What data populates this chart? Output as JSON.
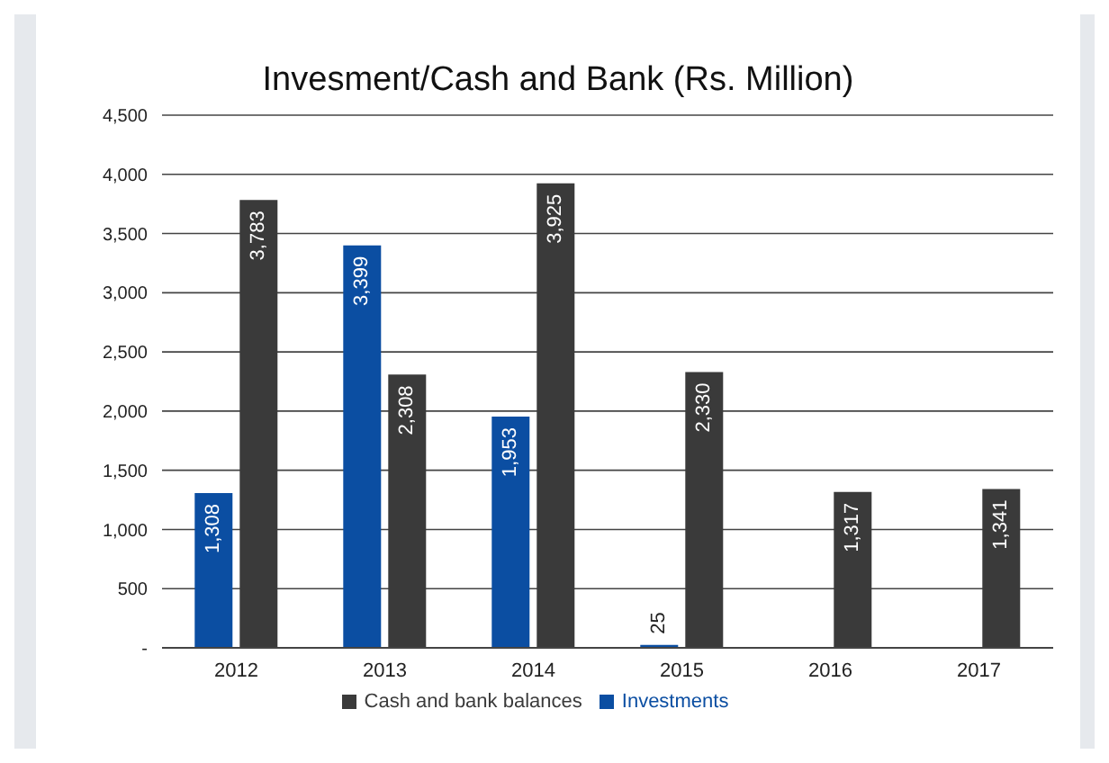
{
  "chart_data": {
    "type": "bar",
    "title": "Invesment/Cash and Bank (Rs. Million)",
    "categories": [
      "2012",
      "2013",
      "2014",
      "2015",
      "2016",
      "2017"
    ],
    "series": [
      {
        "name": "Investments",
        "color": "#0b4ea2",
        "values": [
          1308,
          3399,
          1953,
          25,
          null,
          null
        ],
        "value_labels": [
          "1,308",
          "3,399",
          "1,953",
          "25",
          null,
          null
        ]
      },
      {
        "name": "Cash and bank balances",
        "color": "#3a3a3a",
        "values": [
          3783,
          2308,
          3925,
          2330,
          1317,
          1341
        ],
        "value_labels": [
          "3,783",
          "2,308",
          "3,925",
          "2,330",
          "1,317",
          "1,341"
        ]
      }
    ],
    "ylim": [
      0,
      4500
    ],
    "yticks": [
      {
        "value": 0,
        "label": "-"
      },
      500,
      {
        "value": 1000,
        "label": "1,000"
      },
      {
        "value": 1500,
        "label": "1,500"
      },
      {
        "value": 2000,
        "label": "2,000"
      },
      {
        "value": 2500,
        "label": "2,500"
      },
      {
        "value": 3000,
        "label": "3,000"
      },
      {
        "value": 3500,
        "label": "3,500"
      },
      {
        "value": 4000,
        "label": "4,000"
      },
      {
        "value": 4500,
        "label": "4,500"
      }
    ],
    "grid": "y",
    "legend": "bottom"
  }
}
